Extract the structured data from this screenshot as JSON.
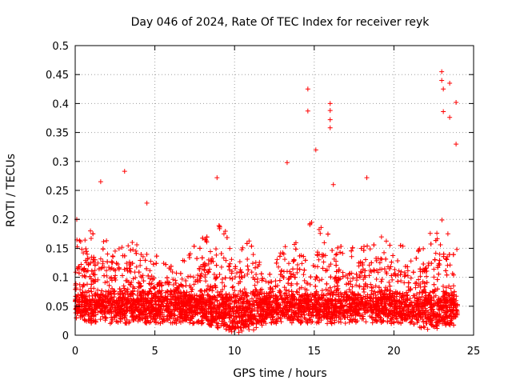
{
  "chart_data": {
    "type": "scatter",
    "title": "Day 046 of 2024, Rate Of TEC Index for receiver reyk",
    "xlabel": "GPS time / hours",
    "ylabel": "ROTI / TECUs",
    "xlim": [
      0,
      25
    ],
    "ylim": [
      0,
      0.5
    ],
    "x_ticks": [
      0,
      5,
      10,
      15,
      20,
      25
    ],
    "y_ticks": [
      0,
      0.05,
      0.1,
      0.15,
      0.2,
      0.25,
      0.3,
      0.35,
      0.4,
      0.45,
      0.5
    ],
    "x_tick_labels": [
      "0",
      "5",
      "10",
      "15",
      "20",
      "25"
    ],
    "y_tick_labels": [
      "0",
      "0.05",
      "0.1",
      "0.15",
      "0.2",
      "0.25",
      "0.3",
      "0.35",
      "0.4",
      "0.45",
      "0.5"
    ],
    "grid": true,
    "marker": "+",
    "point_color": "#ff0000",
    "notable_points": [
      {
        "x": 0.1,
        "y": 0.2
      },
      {
        "x": 1.6,
        "y": 0.265
      },
      {
        "x": 3.1,
        "y": 0.283
      },
      {
        "x": 4.5,
        "y": 0.228
      },
      {
        "x": 8.9,
        "y": 0.272
      },
      {
        "x": 13.3,
        "y": 0.298
      },
      {
        "x": 14.6,
        "y": 0.425
      },
      {
        "x": 14.6,
        "y": 0.387
      },
      {
        "x": 15.1,
        "y": 0.32
      },
      {
        "x": 16.0,
        "y": 0.4
      },
      {
        "x": 16.0,
        "y": 0.388
      },
      {
        "x": 16.0,
        "y": 0.372
      },
      {
        "x": 16.0,
        "y": 0.358
      },
      {
        "x": 16.2,
        "y": 0.26
      },
      {
        "x": 18.3,
        "y": 0.272
      },
      {
        "x": 23.0,
        "y": 0.455
      },
      {
        "x": 23.0,
        "y": 0.44
      },
      {
        "x": 23.1,
        "y": 0.425
      },
      {
        "x": 23.1,
        "y": 0.386
      },
      {
        "x": 23.5,
        "y": 0.435
      },
      {
        "x": 23.5,
        "y": 0.376
      },
      {
        "x": 23.9,
        "y": 0.402
      },
      {
        "x": 23.9,
        "y": 0.33
      }
    ],
    "density_profile": [
      {
        "x": 0,
        "y_low": 0.03,
        "y_high": 0.17
      },
      {
        "x": 1,
        "y_low": 0.02,
        "y_high": 0.19
      },
      {
        "x": 2,
        "y_low": 0.02,
        "y_high": 0.18
      },
      {
        "x": 3,
        "y_low": 0.02,
        "y_high": 0.17
      },
      {
        "x": 4,
        "y_low": 0.02,
        "y_high": 0.16
      },
      {
        "x": 5,
        "y_low": 0.02,
        "y_high": 0.14
      },
      {
        "x": 6,
        "y_low": 0.02,
        "y_high": 0.13
      },
      {
        "x": 7,
        "y_low": 0.02,
        "y_high": 0.14
      },
      {
        "x": 8,
        "y_low": 0.02,
        "y_high": 0.17
      },
      {
        "x": 9,
        "y_low": 0.01,
        "y_high": 0.2
      },
      {
        "x": 10,
        "y_low": 0.005,
        "y_high": 0.16
      },
      {
        "x": 11,
        "y_low": 0.005,
        "y_high": 0.17
      },
      {
        "x": 12,
        "y_low": 0.02,
        "y_high": 0.1
      },
      {
        "x": 13,
        "y_low": 0.02,
        "y_high": 0.17
      },
      {
        "x": 14,
        "y_low": 0.02,
        "y_high": 0.18
      },
      {
        "x": 15,
        "y_low": 0.02,
        "y_high": 0.2
      },
      {
        "x": 16,
        "y_low": 0.02,
        "y_high": 0.2
      },
      {
        "x": 17,
        "y_low": 0.02,
        "y_high": 0.14
      },
      {
        "x": 18,
        "y_low": 0.02,
        "y_high": 0.18
      },
      {
        "x": 19,
        "y_low": 0.02,
        "y_high": 0.19
      },
      {
        "x": 20,
        "y_low": 0.02,
        "y_high": 0.16
      },
      {
        "x": 21,
        "y_low": 0.02,
        "y_high": 0.15
      },
      {
        "x": 22,
        "y_low": 0.01,
        "y_high": 0.17
      },
      {
        "x": 23,
        "y_low": 0.01,
        "y_high": 0.2
      },
      {
        "x": 24,
        "y_low": 0.02,
        "y_high": 0.15
      }
    ]
  }
}
